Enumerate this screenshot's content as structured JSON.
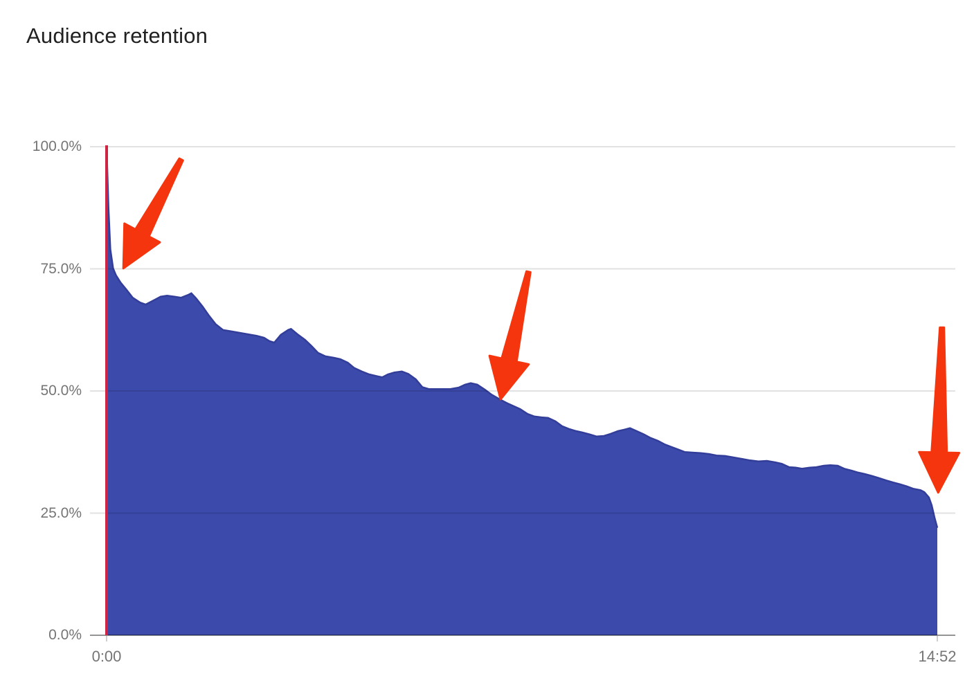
{
  "chart_data": {
    "type": "area",
    "title": "Audience retention",
    "legend": false,
    "grid": true,
    "x_axis": {
      "unit": "video time (m:ss)",
      "range_seconds": [
        0,
        892
      ],
      "ticks": [
        {
          "t": 0,
          "label": "0:00"
        },
        {
          "t": 892,
          "label": "14:52"
        }
      ]
    },
    "y_axis": {
      "unit": "percent of viewers watching",
      "range_pct": [
        0,
        100
      ],
      "ticks": [
        {
          "v": 100,
          "label": "100.0%"
        },
        {
          "v": 75,
          "label": "75.0%"
        },
        {
          "v": 50,
          "label": "50.0%"
        },
        {
          "v": 25,
          "label": "25.0%"
        },
        {
          "v": 0,
          "label": "0.0%"
        }
      ]
    },
    "series": [
      {
        "name": "Audience retention",
        "points": [
          [
            0,
            100
          ],
          [
            2,
            87.5
          ],
          [
            4,
            79
          ],
          [
            7,
            75.1
          ],
          [
            10,
            73.7
          ],
          [
            15,
            72.2
          ],
          [
            21,
            70.8
          ],
          [
            28,
            69.1
          ],
          [
            36,
            68.1
          ],
          [
            42,
            67.7
          ],
          [
            51,
            68.6
          ],
          [
            58,
            69.3
          ],
          [
            65,
            69.5
          ],
          [
            73,
            69.3
          ],
          [
            80,
            69.1
          ],
          [
            88,
            69.7
          ],
          [
            91,
            70
          ],
          [
            96,
            69
          ],
          [
            103,
            67.3
          ],
          [
            110,
            65.4
          ],
          [
            117,
            63.7
          ],
          [
            125,
            62.5
          ],
          [
            134,
            62.2
          ],
          [
            143,
            61.9
          ],
          [
            152,
            61.6
          ],
          [
            161,
            61.3
          ],
          [
            169,
            60.9
          ],
          [
            175,
            60.2
          ],
          [
            180,
            59.9
          ],
          [
            184,
            60.8
          ],
          [
            187,
            61.5
          ],
          [
            195,
            62.5
          ],
          [
            198,
            62.7
          ],
          [
            205,
            61.6
          ],
          [
            213,
            60.5
          ],
          [
            220,
            59.2
          ],
          [
            227,
            57.8
          ],
          [
            235,
            57.1
          ],
          [
            244,
            56.8
          ],
          [
            251,
            56.5
          ],
          [
            259,
            55.8
          ],
          [
            266,
            54.7
          ],
          [
            274,
            54
          ],
          [
            282,
            53.4
          ],
          [
            291,
            53
          ],
          [
            296,
            52.8
          ],
          [
            302,
            53.4
          ],
          [
            309,
            53.8
          ],
          [
            317,
            54
          ],
          [
            324,
            53.5
          ],
          [
            332,
            52.4
          ],
          [
            339,
            50.8
          ],
          [
            346,
            50.4
          ],
          [
            357,
            50.4
          ],
          [
            369,
            50.4
          ],
          [
            378,
            50.7
          ],
          [
            385,
            51.3
          ],
          [
            391,
            51.6
          ],
          [
            398,
            51.3
          ],
          [
            406,
            50.3
          ],
          [
            413,
            49.3
          ],
          [
            422,
            48.3
          ],
          [
            430,
            47.5
          ],
          [
            437,
            46.9
          ],
          [
            444,
            46.3
          ],
          [
            452,
            45.3
          ],
          [
            459,
            44.8
          ],
          [
            467,
            44.6
          ],
          [
            474,
            44.5
          ],
          [
            482,
            43.8
          ],
          [
            489,
            42.8
          ],
          [
            497,
            42.2
          ],
          [
            504,
            41.8
          ],
          [
            511,
            41.5
          ],
          [
            519,
            41.1
          ],
          [
            526,
            40.7
          ],
          [
            534,
            40.8
          ],
          [
            541,
            41.2
          ],
          [
            549,
            41.8
          ],
          [
            556,
            42.1
          ],
          [
            562,
            42.4
          ],
          [
            569,
            41.8
          ],
          [
            577,
            41.1
          ],
          [
            584,
            40.4
          ],
          [
            592,
            39.8
          ],
          [
            599,
            39.1
          ],
          [
            607,
            38.5
          ],
          [
            614,
            38
          ],
          [
            621,
            37.5
          ],
          [
            629,
            37.4
          ],
          [
            638,
            37.3
          ],
          [
            647,
            37.1
          ],
          [
            655,
            36.8
          ],
          [
            664,
            36.7
          ],
          [
            673,
            36.4
          ],
          [
            682,
            36.1
          ],
          [
            691,
            35.8
          ],
          [
            700,
            35.6
          ],
          [
            709,
            35.7
          ],
          [
            718,
            35.4
          ],
          [
            725,
            35.1
          ],
          [
            733,
            34.4
          ],
          [
            740,
            34.3
          ],
          [
            747,
            34.1
          ],
          [
            755,
            34.3
          ],
          [
            762,
            34.4
          ],
          [
            770,
            34.7
          ],
          [
            777,
            34.8
          ],
          [
            785,
            34.7
          ],
          [
            792,
            34.1
          ],
          [
            800,
            33.7
          ],
          [
            807,
            33.3
          ],
          [
            814,
            33
          ],
          [
            822,
            32.6
          ],
          [
            829,
            32.2
          ],
          [
            837,
            31.7
          ],
          [
            844,
            31.3
          ],
          [
            852,
            30.9
          ],
          [
            859,
            30.5
          ],
          [
            866,
            30
          ],
          [
            874,
            29.7
          ],
          [
            878,
            29.3
          ],
          [
            883,
            28.2
          ],
          [
            886,
            26.6
          ],
          [
            889,
            24.1
          ],
          [
            892,
            22
          ]
        ]
      }
    ],
    "playhead": {
      "t": 0
    },
    "annotations": [
      {
        "type": "arrow",
        "tail": {
          "t": 80,
          "pct": 97.4
        },
        "tip": {
          "t": 18,
          "pct": 75.1
        }
      },
      {
        "type": "arrow",
        "tail": {
          "t": 453,
          "pct": 74.4
        },
        "tip": {
          "t": 423,
          "pct": 48.3
        }
      },
      {
        "type": "arrow",
        "tail": {
          "t": 897,
          "pct": 63.0
        },
        "tip": {
          "t": 893,
          "pct": 29.2
        }
      }
    ]
  },
  "colors": {
    "background": "#ffffff",
    "title_text": "#212121",
    "axis_label_text": "#757575",
    "area_fill": "#3c4aab",
    "area_stroke": "#323e99",
    "gridline": "rgba(0,0,0,0.115)",
    "axis_line": "rgba(0,0,0,0.42)",
    "tick_mark": "#cfcfcf",
    "playhead_red": "#ce2444",
    "annotation_arrow_red": "#f5350e"
  }
}
